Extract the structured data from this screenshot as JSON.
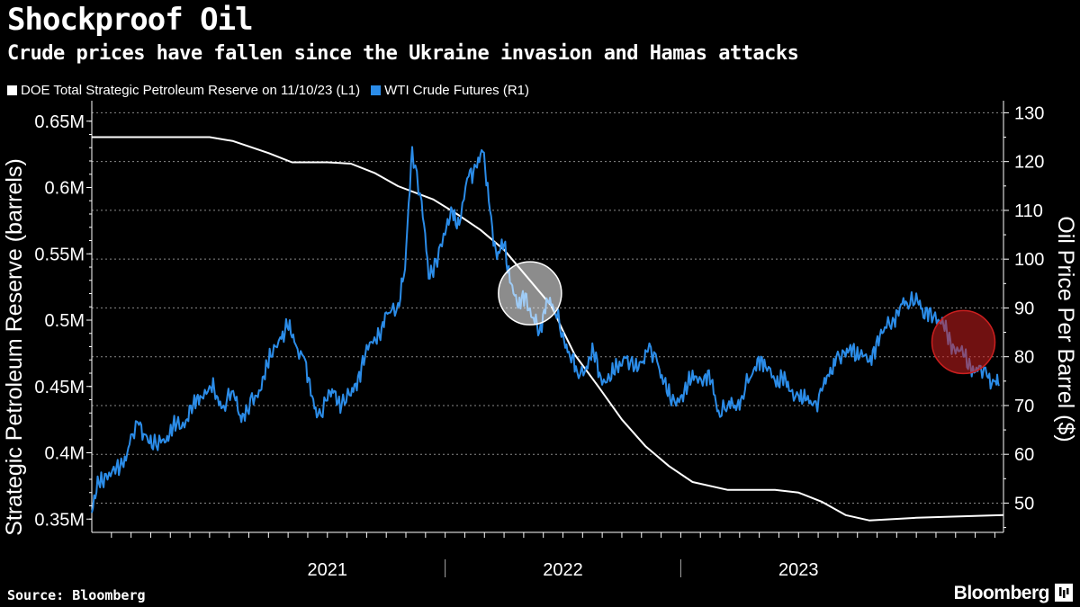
{
  "header": {
    "title": "Shockproof Oil",
    "subtitle": "Crude prices have fallen since the Ukraine invasion and Hamas attacks"
  },
  "legend": [
    {
      "label": "DOE Total Strategic Petroleum Reserve on 11/10/23 (L1)",
      "color": "#ffffff"
    },
    {
      "label": "WTI Crude Futures (R1)",
      "color": "#2b8ce8"
    }
  ],
  "footer": {
    "source": "Source: Bloomberg",
    "brand": "Bloomberg"
  },
  "chart_data": {
    "type": "line",
    "title": "Shockproof Oil",
    "subtitle": "Crude prices have fallen since the Ukraine invasion and Hamas attacks",
    "x_range": [
      2020.0,
      2023.87
    ],
    "x_tick_labels": [
      "2021",
      "2022",
      "2023"
    ],
    "left_axis": {
      "label": "Strategic Petroleum Reserve (barrels)",
      "range": [
        0.34,
        0.66
      ],
      "ticks": [
        0.35,
        0.4,
        0.45,
        0.5,
        0.55,
        0.6,
        0.65
      ],
      "tick_labels": [
        "0.35M",
        "0.4M",
        "0.45M",
        "0.5M",
        "0.55M",
        "0.6M",
        "0.65M"
      ]
    },
    "right_axis": {
      "label": "Oil Price Per Barrel ($)",
      "range": [
        44,
        131
      ],
      "ticks": [
        50,
        60,
        70,
        80,
        90,
        100,
        110,
        120,
        130
      ],
      "tick_labels": [
        "50",
        "60",
        "70",
        "80",
        "90",
        "100",
        "110",
        "120",
        "130"
      ]
    },
    "grid": true,
    "legend_position": "top-left",
    "series": [
      {
        "name": "DOE Total Strategic Petroleum Reserve on 11/10/23 (L1)",
        "axis": "left",
        "color": "#ffffff",
        "x": [
          2020.0,
          2020.15,
          2020.3,
          2020.5,
          2020.6,
          2020.75,
          2020.85,
          2021.0,
          2021.1,
          2021.2,
          2021.3,
          2021.45,
          2021.55,
          2021.65,
          2021.75,
          2021.85,
          2021.95,
          2022.0,
          2022.05,
          2022.15,
          2022.25,
          2022.35,
          2022.45,
          2022.55,
          2022.7,
          2022.8,
          2022.9,
          2023.0,
          2023.1,
          2023.2,
          2023.3,
          2023.5,
          2023.87
        ],
        "values": [
          0.638,
          0.638,
          0.638,
          0.638,
          0.635,
          0.626,
          0.619,
          0.619,
          0.618,
          0.611,
          0.601,
          0.591,
          0.58,
          0.568,
          0.553,
          0.532,
          0.511,
          0.492,
          0.474,
          0.45,
          0.425,
          0.405,
          0.39,
          0.378,
          0.372,
          0.372,
          0.372,
          0.37,
          0.363,
          0.353,
          0.349,
          0.351,
          0.353
        ]
      },
      {
        "name": "WTI Crude Futures (R1)",
        "axis": "right",
        "color": "#2b8ce8",
        "x": [
          2020.0,
          2020.03,
          2020.06,
          2020.1,
          2020.13,
          2020.16,
          2020.2,
          2020.23,
          2020.26,
          2020.3,
          2020.33,
          2020.36,
          2020.4,
          2020.43,
          2020.46,
          2020.5,
          2020.53,
          2020.56,
          2020.6,
          2020.63,
          2020.66,
          2020.7,
          2020.73,
          2020.76,
          2020.8,
          2020.83,
          2020.86,
          2020.9,
          2020.93,
          2020.96,
          2021.0,
          2021.03,
          2021.06,
          2021.1,
          2021.13,
          2021.16,
          2021.2,
          2021.23,
          2021.26,
          2021.3,
          2021.33,
          2021.36,
          2021.4,
          2021.43,
          2021.46,
          2021.5,
          2021.53,
          2021.56,
          2021.6,
          2021.63,
          2021.66,
          2021.69,
          2021.72,
          2021.75,
          2021.78,
          2021.81,
          2021.84,
          2021.87,
          2021.9,
          2021.93,
          2021.96,
          2022.0,
          2022.03,
          2022.06,
          2022.1,
          2022.13,
          2022.16,
          2022.2,
          2022.23,
          2022.26,
          2022.3,
          2022.33,
          2022.36,
          2022.4,
          2022.43,
          2022.46,
          2022.5,
          2022.53,
          2022.56,
          2022.6,
          2022.63,
          2022.66,
          2022.7,
          2022.73,
          2022.76,
          2022.8,
          2022.83,
          2022.86,
          2022.9,
          2022.93,
          2022.96,
          2023.0,
          2023.03,
          2023.06,
          2023.1,
          2023.13,
          2023.16,
          2023.2,
          2023.23,
          2023.26,
          2023.3,
          2023.33,
          2023.36,
          2023.4,
          2023.43,
          2023.46,
          2023.5,
          2023.53,
          2023.56,
          2023.6,
          2023.63,
          2023.66,
          2023.7,
          2023.73,
          2023.76,
          2023.8,
          2023.83,
          2023.85
        ],
        "values": [
          48,
          54,
          56,
          56,
          58,
          62,
          66,
          64,
          61,
          63,
          64,
          66,
          67,
          70,
          72,
          74,
          72,
          70,
          73,
          68,
          69,
          72,
          76,
          80,
          84,
          86,
          83,
          80,
          72,
          68,
          71,
          73,
          70,
          72,
          76,
          80,
          84,
          86,
          89,
          91,
          98,
          123,
          112,
          96,
          100,
          105,
          110,
          107,
          117,
          119,
          122,
          110,
          100,
          103,
          95,
          90,
          93,
          88,
          85,
          92,
          90,
          85,
          80,
          77,
          78,
          81,
          76,
          75,
          78,
          80,
          77,
          79,
          81,
          79,
          75,
          70,
          72,
          74,
          76,
          76,
          75,
          69,
          70,
          70,
          72,
          76,
          80,
          78,
          75,
          76,
          73,
          72,
          71,
          70,
          73,
          76,
          80,
          80,
          82,
          80,
          79,
          83,
          85,
          88,
          90,
          91,
          93,
          88,
          90,
          87,
          85,
          82,
          80,
          78,
          77,
          76,
          75,
          74
        ]
      }
    ],
    "annotations": [
      {
        "type": "circle",
        "label": "Ukraine invasion",
        "x": 2021.86,
        "y_right": 93,
        "color": "#ffffff"
      },
      {
        "type": "circle",
        "label": "Hamas attacks",
        "x": 2023.7,
        "y_right": 83,
        "color": "#cc1f1f"
      }
    ]
  }
}
